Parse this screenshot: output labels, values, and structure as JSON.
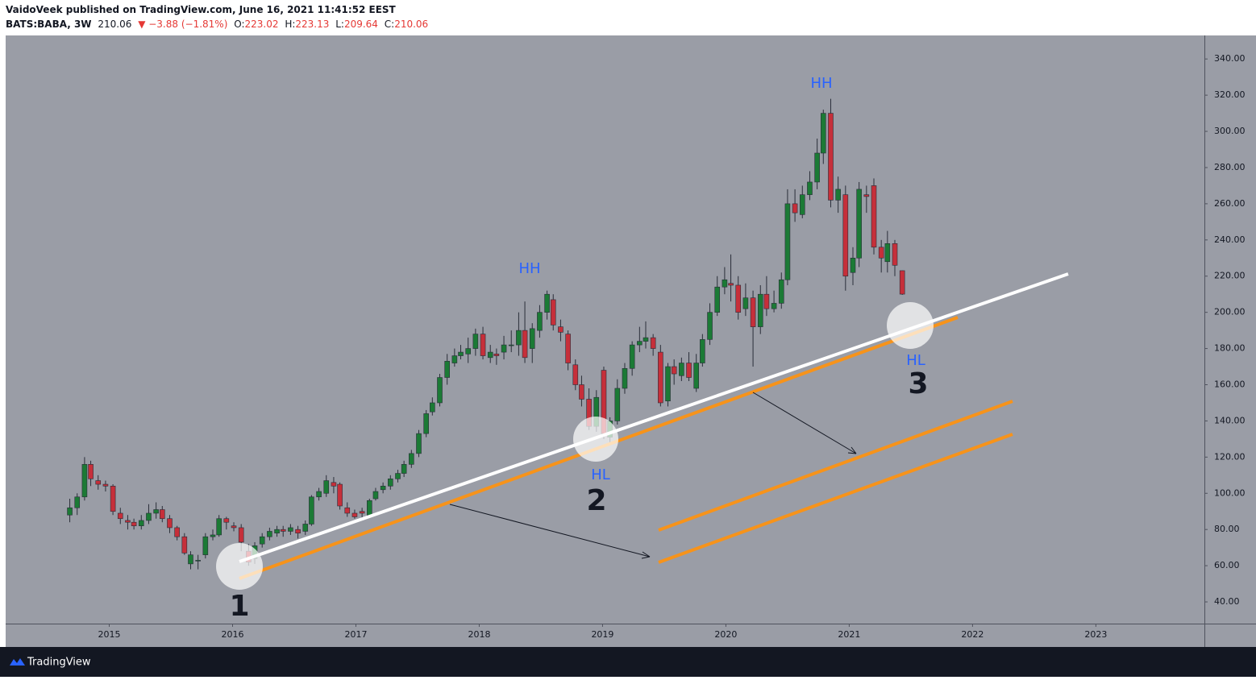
{
  "header": {
    "publisher": "VaidoVeek published on TradingView.com, June 16, 2021 11:41:52 EEST",
    "symbol": "BATS:BABA, 3W",
    "last": "210.06",
    "change": "▼ −3.88 (−1.81%)",
    "ohlc": [
      {
        "label": "O:",
        "value": "223.02"
      },
      {
        "label": "H:",
        "value": "223.13"
      },
      {
        "label": "L:",
        "value": "209.64"
      },
      {
        "label": "C:",
        "value": "210.06"
      }
    ]
  },
  "footer": {
    "brand": "TradingView"
  },
  "chart_data": {
    "type": "candlestick",
    "up_color": "#1b7a35",
    "down_color": "#c62f3a",
    "xlim": [
      2014.16,
      2023.88
    ],
    "xticks": [
      2015,
      2016,
      2017,
      2018,
      2019,
      2020,
      2021,
      2022,
      2023
    ],
    "ylim": [
      28,
      353
    ],
    "yticks": [
      {
        "value": 40,
        "label": "40.00"
      },
      {
        "value": 60,
        "label": "60.00"
      },
      {
        "value": 80,
        "label": "80.00"
      },
      {
        "value": 100,
        "label": "100.00"
      },
      {
        "value": 120,
        "label": "120.00"
      },
      {
        "value": 140,
        "label": "140.00"
      },
      {
        "value": 160,
        "label": "160.00"
      },
      {
        "value": 180,
        "label": "180.00"
      },
      {
        "value": 200,
        "label": "200.00"
      },
      {
        "value": 220,
        "label": "220.00"
      },
      {
        "value": 240,
        "label": "240.00"
      },
      {
        "value": 260,
        "label": "260.00"
      },
      {
        "value": 280,
        "label": "280.00"
      },
      {
        "value": 300,
        "label": "300.00"
      },
      {
        "value": 320,
        "label": "320.00"
      },
      {
        "value": 340,
        "label": "340.00"
      }
    ],
    "x": [
      2014.68,
      2014.74,
      2014.8,
      2014.85,
      2014.91,
      2014.97,
      2015.03,
      2015.09,
      2015.15,
      2015.2,
      2015.26,
      2015.32,
      2015.38,
      2015.43,
      2015.49,
      2015.55,
      2015.61,
      2015.66,
      2015.72,
      2015.78,
      2015.84,
      2015.89,
      2015.95,
      2016.01,
      2016.07,
      2016.13,
      2016.18,
      2016.24,
      2016.3,
      2016.36,
      2016.41,
      2016.47,
      2016.53,
      2016.59,
      2016.64,
      2016.7,
      2016.76,
      2016.82,
      2016.87,
      2016.93,
      2016.99,
      2017.05,
      2017.11,
      2017.16,
      2017.22,
      2017.28,
      2017.34,
      2017.39,
      2017.45,
      2017.51,
      2017.57,
      2017.62,
      2017.68,
      2017.74,
      2017.8,
      2017.85,
      2017.91,
      2017.97,
      2018.03,
      2018.09,
      2018.14,
      2018.2,
      2018.26,
      2018.32,
      2018.37,
      2018.43,
      2018.49,
      2018.55,
      2018.6,
      2018.66,
      2018.72,
      2018.78,
      2018.83,
      2018.89,
      2018.95,
      2019.01,
      2019.06,
      2019.12,
      2019.18,
      2019.24,
      2019.3,
      2019.35,
      2019.41,
      2019.47,
      2019.53,
      2019.58,
      2019.64,
      2019.7,
      2019.76,
      2019.81,
      2019.87,
      2019.93,
      2019.99,
      2020.04,
      2020.1,
      2020.16,
      2020.22,
      2020.28,
      2020.33,
      2020.39,
      2020.45,
      2020.5,
      2020.56,
      2020.62,
      2020.68,
      2020.74,
      2020.79,
      2020.85,
      2020.91,
      2020.97,
      2021.03,
      2021.08,
      2021.14,
      2021.2,
      2021.26,
      2021.31,
      2021.37,
      2021.43
    ],
    "open": [
      88,
      92,
      98,
      116,
      107,
      105,
      104,
      89,
      85,
      84,
      82,
      85,
      89,
      91,
      86,
      81,
      76,
      61,
      63,
      66,
      76,
      77,
      86,
      82,
      81,
      68,
      64,
      72,
      76,
      78,
      80,
      79,
      80,
      79,
      83,
      98,
      100,
      106,
      105,
      92,
      89,
      90,
      88,
      97,
      102,
      104,
      108,
      111,
      116,
      122,
      133,
      145,
      150,
      164,
      172,
      176,
      177,
      180,
      188,
      175,
      177,
      178,
      182,
      182,
      190,
      180,
      190,
      200,
      207,
      192,
      188,
      171,
      160,
      152,
      137,
      168,
      131,
      140,
      158,
      169,
      182,
      184,
      186,
      178,
      151,
      170,
      165,
      172,
      158,
      172,
      185,
      200,
      214,
      216,
      215,
      202,
      208,
      192,
      210,
      202,
      205,
      218,
      260,
      254,
      265,
      272,
      288,
      310,
      262,
      265,
      222,
      230,
      265,
      270,
      236,
      228,
      238,
      223.02
    ],
    "high": [
      97,
      100,
      120,
      118,
      110,
      107,
      105,
      92,
      88,
      86,
      88,
      94,
      95,
      93,
      88,
      82,
      78,
      68,
      66,
      78,
      80,
      88,
      87,
      84,
      83,
      72,
      73,
      78,
      81,
      82,
      82,
      83,
      82,
      85,
      99,
      103,
      110,
      109,
      106,
      95,
      91,
      92,
      97,
      103,
      106,
      110,
      113,
      118,
      124,
      135,
      146,
      153,
      166,
      177,
      180,
      182,
      186,
      191,
      192,
      182,
      180,
      187,
      190,
      200,
      206,
      194,
      204,
      212,
      210,
      196,
      190,
      174,
      165,
      158,
      157,
      170,
      142,
      163,
      172,
      184,
      192,
      195,
      188,
      182,
      172,
      174,
      175,
      178,
      177,
      188,
      205,
      220,
      225,
      232,
      220,
      216,
      212,
      215,
      220,
      212,
      222,
      268,
      268,
      270,
      278,
      296,
      312,
      318,
      275,
      270,
      236,
      272,
      270,
      274,
      240,
      245,
      240,
      223.13
    ],
    "low": [
      84,
      88,
      96,
      104,
      102,
      101,
      88,
      83,
      80,
      80,
      80,
      83,
      86,
      84,
      78,
      74,
      66,
      58,
      58,
      64,
      74,
      76,
      80,
      79,
      68,
      60,
      61,
      70,
      74,
      76,
      76,
      77,
      75,
      77,
      82,
      96,
      98,
      100,
      91,
      87,
      86,
      86,
      87,
      96,
      100,
      102,
      106,
      109,
      114,
      120,
      131,
      143,
      148,
      160,
      170,
      174,
      172,
      176,
      174,
      172,
      171,
      174,
      178,
      176,
      172,
      172,
      186,
      196,
      190,
      184,
      168,
      157,
      148,
      135,
      134,
      130,
      128,
      138,
      155,
      165,
      178,
      180,
      176,
      148,
      148,
      160,
      162,
      162,
      156,
      170,
      182,
      198,
      210,
      206,
      196,
      198,
      170,
      188,
      198,
      200,
      202,
      215,
      250,
      252,
      262,
      268,
      282,
      258,
      255,
      212,
      215,
      225,
      255,
      232,
      222,
      222,
      220,
      209.64
    ],
    "close": [
      92,
      98,
      116,
      108,
      105,
      104,
      90,
      86,
      84,
      82,
      85,
      89,
      91,
      86,
      81,
      76,
      67,
      66,
      63,
      76,
      77,
      86,
      84,
      81,
      73,
      62,
      71,
      76,
      79,
      80,
      79,
      81,
      78,
      83,
      98,
      101,
      107,
      104,
      93,
      89,
      87,
      89,
      96,
      101,
      104,
      108,
      111,
      116,
      122,
      133,
      144,
      150,
      164,
      173,
      176,
      178,
      180,
      188,
      176,
      178,
      176,
      182,
      182,
      190,
      175,
      191,
      200,
      210,
      193,
      189,
      172,
      160,
      152,
      137,
      153,
      133,
      140,
      158,
      169,
      182,
      184,
      186,
      180,
      150,
      170,
      166,
      172,
      164,
      172,
      185,
      200,
      214,
      218,
      215,
      200,
      208,
      192,
      210,
      202,
      205,
      218,
      260,
      255,
      265,
      272,
      288,
      310,
      262,
      268,
      220,
      230,
      268,
      264,
      236,
      230,
      238,
      226,
      210.06
    ],
    "annotations": [
      "HH",
      "HH",
      "HL",
      "HL",
      "1",
      "2",
      "3"
    ]
  }
}
